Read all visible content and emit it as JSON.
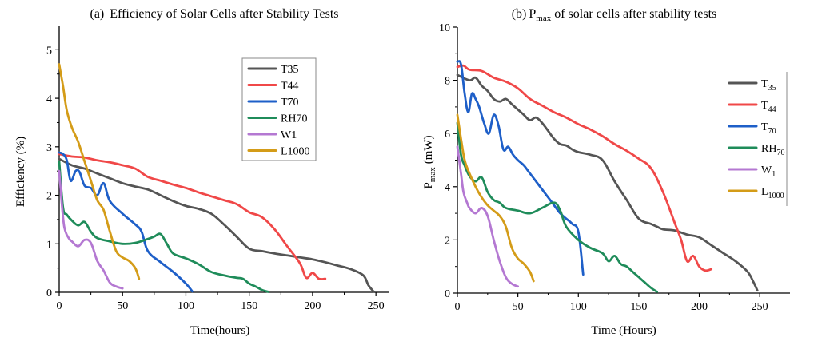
{
  "chart_data": [
    {
      "type": "line",
      "title_prefix": "(a)",
      "title": "Efficiency of Solar Cells after Stability Tests",
      "xlabel": "Time(hours)",
      "ylabel": "Efficiency (%)",
      "xlim": [
        0,
        260
      ],
      "ylim": [
        0,
        5.5
      ],
      "xticks": [
        0,
        50,
        100,
        150,
        200,
        250
      ],
      "yticks": [
        0,
        1,
        2,
        3,
        4,
        5
      ],
      "legend_position": "top-right",
      "series": [
        {
          "name": "T35",
          "color": "#555555",
          "x": [
            0,
            10,
            20,
            30,
            40,
            50,
            60,
            70,
            80,
            90,
            100,
            110,
            120,
            130,
            140,
            150,
            160,
            170,
            180,
            190,
            200,
            210,
            220,
            230,
            240,
            244,
            248
          ],
          "y": [
            2.75,
            2.62,
            2.55,
            2.45,
            2.35,
            2.25,
            2.18,
            2.12,
            2.0,
            1.88,
            1.78,
            1.72,
            1.62,
            1.4,
            1.15,
            0.9,
            0.85,
            0.8,
            0.76,
            0.72,
            0.68,
            0.62,
            0.55,
            0.48,
            0.35,
            0.15,
            0.02
          ]
        },
        {
          "name": "T44",
          "color": "#f04848",
          "x": [
            0,
            10,
            20,
            30,
            40,
            50,
            60,
            70,
            80,
            90,
            100,
            110,
            120,
            130,
            140,
            150,
            160,
            170,
            180,
            190,
            195,
            200,
            205,
            210
          ],
          "y": [
            2.85,
            2.8,
            2.78,
            2.72,
            2.68,
            2.62,
            2.55,
            2.38,
            2.3,
            2.22,
            2.15,
            2.06,
            1.98,
            1.9,
            1.82,
            1.65,
            1.55,
            1.3,
            0.95,
            0.6,
            0.3,
            0.4,
            0.28,
            0.28
          ]
        },
        {
          "name": "T70",
          "color": "#1e5fc8",
          "x": [
            0,
            3,
            6,
            9,
            13,
            16,
            20,
            25,
            30,
            35,
            40,
            50,
            60,
            65,
            70,
            80,
            90,
            100,
            105
          ],
          "y": [
            2.88,
            2.85,
            2.72,
            2.3,
            2.5,
            2.48,
            2.2,
            2.15,
            2.0,
            2.25,
            1.88,
            1.62,
            1.4,
            1.25,
            0.85,
            0.62,
            0.42,
            0.18,
            0.02
          ]
        },
        {
          "name": "RH70",
          "color": "#1f8c5a",
          "x": [
            0,
            3,
            6,
            10,
            15,
            20,
            25,
            30,
            40,
            50,
            60,
            70,
            75,
            80,
            85,
            90,
            100,
            110,
            120,
            130,
            140,
            145,
            150,
            155,
            160,
            165
          ],
          "y": [
            2.7,
            1.75,
            1.6,
            1.48,
            1.38,
            1.45,
            1.25,
            1.12,
            1.05,
            1.0,
            1.02,
            1.1,
            1.15,
            1.2,
            1.0,
            0.8,
            0.7,
            0.58,
            0.42,
            0.35,
            0.3,
            0.28,
            0.18,
            0.12,
            0.05,
            0.01
          ]
        },
        {
          "name": "W1",
          "color": "#b478d2",
          "x": [
            0,
            3,
            5,
            8,
            10,
            15,
            20,
            25,
            30,
            35,
            40,
            45,
            50
          ],
          "y": [
            2.5,
            1.55,
            1.25,
            1.1,
            1.05,
            0.95,
            1.08,
            1.02,
            0.65,
            0.45,
            0.2,
            0.12,
            0.08
          ]
        },
        {
          "name": "L1000",
          "color": "#d49c18",
          "x": [
            0,
            3,
            6,
            10,
            15,
            20,
            25,
            30,
            35,
            40,
            45,
            50,
            55,
            60,
            63
          ],
          "y": [
            4.7,
            4.25,
            3.75,
            3.4,
            3.1,
            2.7,
            2.3,
            1.9,
            1.7,
            1.25,
            0.85,
            0.72,
            0.65,
            0.5,
            0.28
          ]
        }
      ]
    },
    {
      "type": "line",
      "title_prefix": "(b)",
      "title_main": "P",
      "title_sub": "max",
      "title_rest": "of solar cells after stability tests",
      "xlabel": "Time (Hours)",
      "ylabel_main": "P",
      "ylabel_sub": "max",
      "ylabel_rest": "(mW)",
      "xlim": [
        0,
        275
      ],
      "ylim": [
        0,
        10
      ],
      "xticks": [
        0,
        50,
        100,
        150,
        200,
        250
      ],
      "yticks": [
        0,
        2,
        4,
        6,
        8,
        10
      ],
      "legend_position": "top-right",
      "series": [
        {
          "name_main": "T",
          "name_sub": "35",
          "color": "#555555",
          "x": [
            0,
            10,
            15,
            20,
            25,
            30,
            35,
            40,
            45,
            50,
            55,
            60,
            65,
            70,
            75,
            80,
            85,
            90,
            95,
            100,
            110,
            120,
            130,
            140,
            150,
            160,
            165,
            170,
            180,
            190,
            200,
            210,
            220,
            230,
            240,
            245,
            248
          ],
          "y": [
            8.2,
            8.0,
            8.1,
            7.8,
            7.6,
            7.3,
            7.2,
            7.3,
            7.1,
            6.9,
            6.7,
            6.5,
            6.6,
            6.4,
            6.1,
            5.8,
            5.6,
            5.55,
            5.4,
            5.3,
            5.2,
            5.0,
            4.2,
            3.5,
            2.8,
            2.6,
            2.5,
            2.4,
            2.35,
            2.2,
            2.1,
            1.8,
            1.5,
            1.2,
            0.8,
            0.4,
            0.1
          ]
        },
        {
          "name_main": "T",
          "name_sub": "44",
          "color": "#f04848",
          "x": [
            0,
            5,
            10,
            20,
            30,
            40,
            50,
            60,
            70,
            80,
            90,
            100,
            110,
            120,
            130,
            140,
            150,
            160,
            170,
            180,
            185,
            190,
            195,
            200,
            205,
            210
          ],
          "y": [
            8.5,
            8.55,
            8.4,
            8.35,
            8.1,
            7.95,
            7.7,
            7.3,
            7.05,
            6.8,
            6.6,
            6.35,
            6.15,
            5.9,
            5.6,
            5.35,
            5.05,
            4.7,
            3.8,
            2.6,
            2.0,
            1.2,
            1.4,
            1.0,
            0.85,
            0.9
          ]
        },
        {
          "name_main": "T",
          "name_sub": "70",
          "color": "#1e5fc8",
          "x": [
            0,
            3,
            6,
            9,
            12,
            15,
            18,
            22,
            26,
            30,
            34,
            38,
            42,
            46,
            50,
            55,
            60,
            65,
            70,
            75,
            80,
            85,
            90,
            95,
            100,
            104
          ],
          "y": [
            8.7,
            8.6,
            7.5,
            6.8,
            7.5,
            7.3,
            7.0,
            6.4,
            6.0,
            6.7,
            6.3,
            5.4,
            5.5,
            5.2,
            5.0,
            4.8,
            4.5,
            4.2,
            3.9,
            3.6,
            3.3,
            3.0,
            2.8,
            2.6,
            2.3,
            0.7
          ]
        },
        {
          "name_main": "RH",
          "name_sub": "70",
          "color": "#1f8c5a",
          "x": [
            0,
            3,
            6,
            10,
            15,
            20,
            25,
            30,
            35,
            40,
            50,
            60,
            70,
            80,
            85,
            90,
            100,
            110,
            120,
            125,
            130,
            135,
            140,
            145,
            150,
            155,
            160,
            165
          ],
          "y": [
            6.4,
            5.2,
            4.8,
            4.4,
            4.2,
            4.35,
            3.8,
            3.5,
            3.4,
            3.2,
            3.1,
            3.0,
            3.2,
            3.4,
            3.1,
            2.5,
            2.0,
            1.7,
            1.5,
            1.2,
            1.4,
            1.1,
            1.0,
            0.8,
            0.6,
            0.4,
            0.2,
            0.05
          ]
        },
        {
          "name_main": "W",
          "name_sub": "1",
          "color": "#b478d2",
          "x": [
            0,
            3,
            5,
            8,
            10,
            15,
            20,
            25,
            30,
            35,
            40,
            45,
            50
          ],
          "y": [
            5.5,
            4.5,
            3.8,
            3.4,
            3.2,
            3.0,
            3.2,
            2.9,
            2.0,
            1.2,
            0.6,
            0.35,
            0.25
          ]
        },
        {
          "name_main": "L",
          "name_sub": "1000",
          "color": "#d49c18",
          "x": [
            0,
            3,
            6,
            10,
            15,
            20,
            25,
            30,
            35,
            40,
            45,
            50,
            55,
            60,
            63
          ],
          "y": [
            6.7,
            5.8,
            5.0,
            4.5,
            4.0,
            3.6,
            3.3,
            3.1,
            2.9,
            2.5,
            1.7,
            1.3,
            1.1,
            0.8,
            0.45
          ]
        }
      ]
    }
  ]
}
